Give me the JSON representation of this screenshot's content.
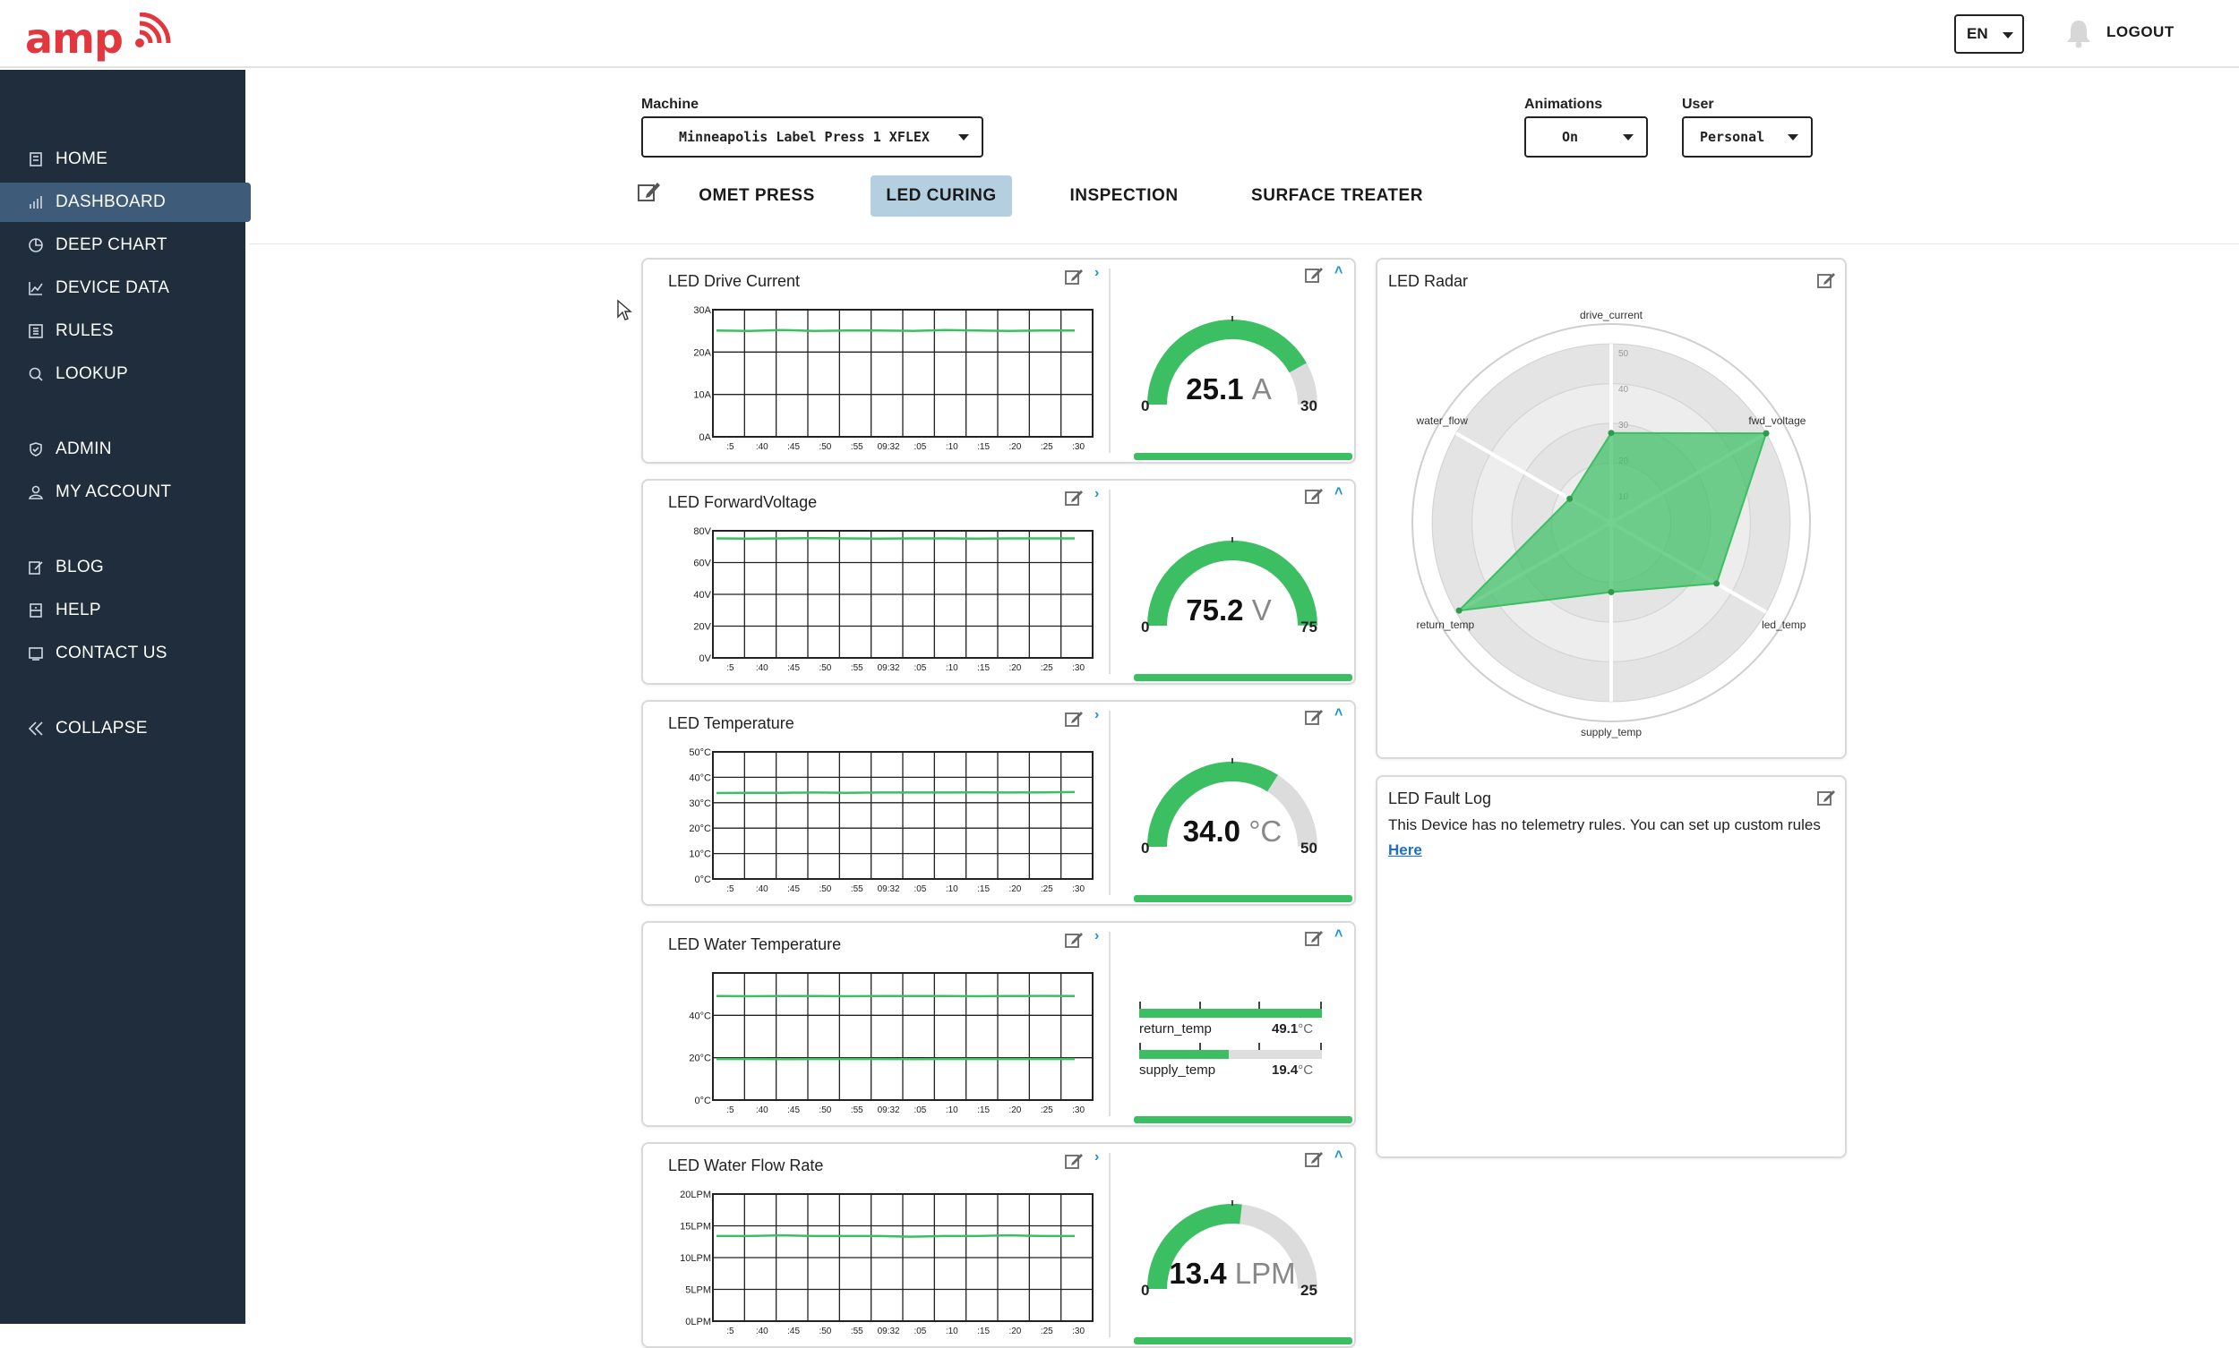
{
  "app": {
    "logo_text": "amp",
    "language": "EN",
    "logout_label": "LOGOUT",
    "accent_color": "#e2373f",
    "sidebar_bg": "#1f2d3d",
    "active_tab_color": "#b3cfe0",
    "ok_green": "#3cbf63"
  },
  "sidebar": {
    "items": [
      {
        "label": "HOME",
        "icon": "home-icon"
      },
      {
        "label": "DASHBOARD",
        "icon": "bar-chart-icon",
        "active": true
      },
      {
        "label": "DEEP CHART",
        "icon": "pie-chart-icon"
      },
      {
        "label": "DEVICE DATA",
        "icon": "line-chart-icon"
      },
      {
        "label": "RULES",
        "icon": "rules-icon"
      },
      {
        "label": "LOOKUP",
        "icon": "search-icon"
      },
      {
        "label": "ADMIN",
        "icon": "shield-icon"
      },
      {
        "label": "MY ACCOUNT",
        "icon": "user-icon"
      },
      {
        "label": "BLOG",
        "icon": "blog-icon"
      },
      {
        "label": "HELP",
        "icon": "help-icon"
      },
      {
        "label": "CONTACT US",
        "icon": "contact-icon"
      },
      {
        "label": "COLLAPSE",
        "icon": "double-chevron-left-icon"
      }
    ]
  },
  "controls": {
    "machine_label": "Machine",
    "machine_value": "Minneapolis Label Press 1 XFLEX",
    "animations_label": "Animations",
    "animations_value": "On",
    "user_label": "User",
    "user_value": "Personal"
  },
  "tabs": [
    {
      "label": "OMET PRESS",
      "active": false
    },
    {
      "label": "LED CURING",
      "active": true
    },
    {
      "label": "INSPECTION",
      "active": false
    },
    {
      "label": "SURFACE TREATER",
      "active": false
    }
  ],
  "x_ticks": [
    ":5",
    ":40",
    ":45",
    ":50",
    ":55",
    "09:32",
    ":05",
    ":10",
    ":15",
    ":20",
    ":25",
    ":30"
  ],
  "widgets": [
    {
      "title": "LED Drive Current",
      "y_ticks": [
        "30A",
        "20A",
        "10A",
        "0A"
      ],
      "gauge_value": "25.1",
      "gauge_unit": "A",
      "gauge_min": "0",
      "gauge_max": "30",
      "fill": 0.837
    },
    {
      "title": "LED ForwardVoltage",
      "y_ticks": [
        "80V",
        "60V",
        "40V",
        "20V",
        "0V"
      ],
      "gauge_value": "75.2",
      "gauge_unit": "V",
      "gauge_min": "0",
      "gauge_max": "75",
      "fill": 1.0
    },
    {
      "title": "LED Temperature",
      "y_ticks": [
        "50°C",
        "40°C",
        "30°C",
        "20°C",
        "10°C",
        "0°C"
      ],
      "gauge_value": "34.0",
      "gauge_unit": "°C",
      "gauge_min": "0",
      "gauge_max": "50",
      "fill": 0.68
    },
    {
      "title": "LED Water Temperature",
      "y_ticks": [
        "40°C",
        "20°C",
        "0°C"
      ],
      "bars": [
        {
          "name": "return_temp",
          "value": "49.1",
          "unit": "°C",
          "fill": 1.0
        },
        {
          "name": "supply_temp",
          "value": "19.4",
          "unit": "°C",
          "fill": 0.49
        }
      ]
    },
    {
      "title": "LED Water Flow Rate",
      "y_ticks": [
        "20LPM",
        "15LPM",
        "10LPM",
        "5LPM",
        "0LPM"
      ],
      "gauge_value": "13.4",
      "gauge_unit": "LPM",
      "gauge_min": "0",
      "gauge_max": "25",
      "fill": 0.536
    }
  ],
  "radar": {
    "title": "LED Radar",
    "axes": [
      "drive_current",
      "fwd_voltage",
      "led_temp",
      "supply_temp",
      "return_temp",
      "water_flow"
    ],
    "ring_ticks": [
      "50",
      "40",
      "30",
      "20",
      "10"
    ]
  },
  "fault_log": {
    "title": "LED Fault Log",
    "message": "This Device has no telemetry rules. You can set up custom rules",
    "link_label": "Here"
  },
  "chart_data": [
    {
      "type": "line",
      "title": "LED Drive Current",
      "ylabel": "A",
      "ylim": [
        0,
        30
      ],
      "x": [
        ":5",
        ":40",
        ":45",
        ":50",
        ":55",
        "09:32",
        ":05",
        ":10",
        ":15",
        ":20",
        ":25",
        ":30"
      ],
      "series": [
        {
          "values": [
            25.1,
            25.0,
            25.2,
            25.0,
            25.1,
            25.1,
            25.0,
            25.2,
            25.1,
            25.0,
            25.1,
            25.1
          ]
        }
      ],
      "grid": true
    },
    {
      "type": "line",
      "title": "LED ForwardVoltage",
      "ylabel": "V",
      "ylim": [
        0,
        80
      ],
      "x": [
        ":5",
        ":40",
        ":45",
        ":50",
        ":55",
        "09:32",
        ":05",
        ":10",
        ":15",
        ":20",
        ":25",
        ":30"
      ],
      "series": [
        {
          "values": [
            75.2,
            75.1,
            75.2,
            75.3,
            75.2,
            75.1,
            75.2,
            75.2,
            75.1,
            75.2,
            75.2,
            75.2
          ]
        }
      ],
      "grid": true
    },
    {
      "type": "line",
      "title": "LED Temperature",
      "ylabel": "°C",
      "ylim": [
        0,
        50
      ],
      "x": [
        ":5",
        ":40",
        ":45",
        ":50",
        ":55",
        "09:32",
        ":05",
        ":10",
        ":15",
        ":20",
        ":25",
        ":30"
      ],
      "series": [
        {
          "values": [
            33.8,
            33.9,
            33.9,
            34.0,
            33.9,
            34.0,
            34.0,
            34.0,
            34.1,
            34.0,
            34.1,
            34.2
          ]
        }
      ],
      "grid": true
    },
    {
      "type": "line",
      "title": "LED Water Temperature",
      "ylabel": "°C",
      "ylim": [
        0,
        60
      ],
      "x": [
        ":5",
        ":40",
        ":45",
        ":50",
        ":55",
        "09:32",
        ":05",
        ":10",
        ":15",
        ":20",
        ":25",
        ":30"
      ],
      "series": [
        {
          "values": [
            49.1,
            49.0,
            49.1,
            49.1,
            49.0,
            49.1,
            49.1,
            49.1,
            49.0,
            49.1,
            49.2,
            49.1
          ]
        },
        {
          "values": [
            19.4,
            19.4,
            19.3,
            19.4,
            19.4,
            19.4,
            19.3,
            19.4,
            19.4,
            19.4,
            19.4,
            19.4
          ]
        }
      ],
      "grid": true
    },
    {
      "type": "line",
      "title": "LED Water Flow Rate",
      "ylabel": "LPM",
      "ylim": [
        0,
        20
      ],
      "x": [
        ":5",
        ":40",
        ":45",
        ":50",
        ":55",
        "09:32",
        ":05",
        ":10",
        ":15",
        ":20",
        ":25",
        ":30"
      ],
      "series": [
        {
          "values": [
            13.4,
            13.4,
            13.5,
            13.4,
            13.4,
            13.4,
            13.3,
            13.4,
            13.4,
            13.5,
            13.4,
            13.4
          ]
        }
      ],
      "grid": true
    },
    {
      "type": "radar",
      "title": "LED Radar",
      "axes": [
        "drive_current",
        "fwd_voltage",
        "led_temp",
        "supply_temp",
        "return_temp",
        "water_flow"
      ],
      "rlim": [
        0,
        50
      ],
      "values": [
        25.1,
        50,
        34.0,
        19.4,
        49.1,
        13.4
      ]
    }
  ]
}
